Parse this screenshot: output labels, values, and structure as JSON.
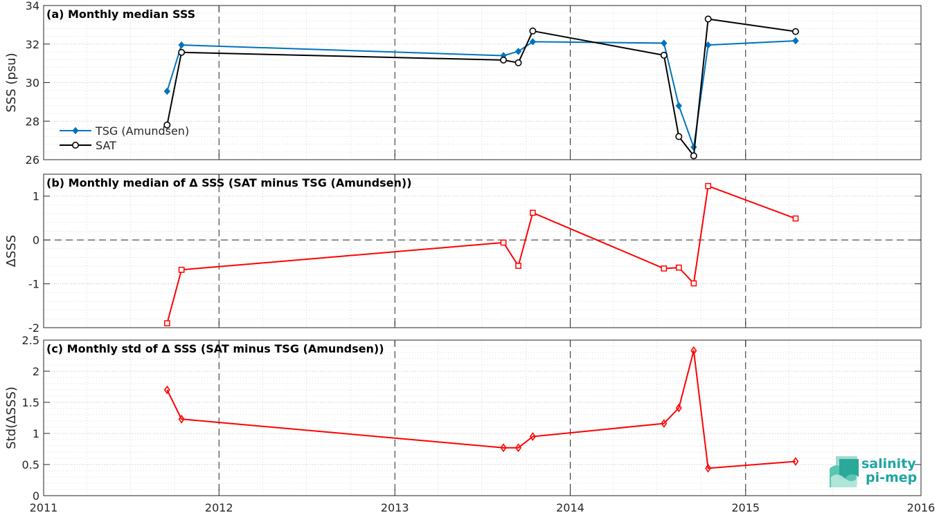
{
  "chart_data": [
    {
      "type": "line",
      "title": "(a) Monthly median SSS",
      "ylabel": "SSS (psu)",
      "xlim": [
        "2011-01-01",
        "2016-01-01"
      ],
      "ylim": [
        26,
        34
      ],
      "yticks": [
        26,
        28,
        30,
        32,
        34
      ],
      "xticks": [
        "2011",
        "2012",
        "2013",
        "2014",
        "2015",
        "2016"
      ],
      "grid": true,
      "legend": "bottom-left",
      "series": [
        {
          "name": "TSG (Amundsen)",
          "color": "#0072BD",
          "marker": "diamond-filled",
          "x": [
            "2011-09-15",
            "2011-10-15",
            "2013-08-15",
            "2013-09-15",
            "2013-10-15",
            "2014-07-15",
            "2014-08-15",
            "2014-09-15",
            "2014-10-15",
            "2015-04-15"
          ],
          "y": [
            29.55,
            31.95,
            31.4,
            31.62,
            32.12,
            32.05,
            28.8,
            26.65,
            31.95,
            32.17
          ]
        },
        {
          "name": "SAT",
          "color": "#000000",
          "marker": "circle-open",
          "x": [
            "2011-09-15",
            "2011-10-15",
            "2013-08-15",
            "2013-09-15",
            "2013-10-15",
            "2014-07-15",
            "2014-08-15",
            "2014-09-15",
            "2014-10-15",
            "2015-04-15"
          ],
          "y": [
            27.8,
            31.57,
            31.17,
            31.03,
            32.68,
            31.42,
            27.2,
            26.2,
            33.3,
            32.65
          ]
        }
      ]
    },
    {
      "type": "line",
      "title": "(b) Monthly median of Δ SSS (SAT minus TSG (Amundsen))",
      "ylabel": "ΔSSS",
      "xlim": [
        "2011-01-01",
        "2016-01-01"
      ],
      "ylim": [
        -2,
        1.5
      ],
      "yticks": [
        -2,
        -1,
        0,
        1
      ],
      "xticks": [
        "2011",
        "2012",
        "2013",
        "2014",
        "2015",
        "2016"
      ],
      "grid": true,
      "zero_line": true,
      "series": [
        {
          "color": "#FF0000",
          "marker": "square-open",
          "x": [
            "2011-09-15",
            "2011-10-15",
            "2013-08-15",
            "2013-09-15",
            "2013-10-15",
            "2014-07-15",
            "2014-08-15",
            "2014-09-15",
            "2014-10-15",
            "2015-04-15"
          ],
          "y": [
            -1.9,
            -0.68,
            -0.06,
            -0.59,
            0.62,
            -0.65,
            -0.63,
            -0.99,
            1.23,
            0.49
          ]
        }
      ]
    },
    {
      "type": "line",
      "title": "(c) Monthly std of Δ SSS (SAT minus TSG (Amundsen))",
      "ylabel": "Std(ΔSSS)",
      "xlim": [
        "2011-01-01",
        "2016-01-01"
      ],
      "ylim": [
        0,
        2.5
      ],
      "yticks": [
        0,
        0.5,
        1,
        1.5,
        2,
        2.5
      ],
      "xticks": [
        "2011",
        "2012",
        "2013",
        "2014",
        "2015",
        "2016"
      ],
      "grid": true,
      "series": [
        {
          "color": "#FF0000",
          "marker": "diamond-open",
          "x": [
            "2011-09-15",
            "2011-10-15",
            "2013-08-15",
            "2013-09-15",
            "2013-10-15",
            "2014-07-15",
            "2014-08-15",
            "2014-09-15",
            "2014-10-15",
            "2015-04-15"
          ],
          "y": [
            1.7,
            1.23,
            0.77,
            0.77,
            0.95,
            1.16,
            1.41,
            2.33,
            0.44,
            0.55
          ]
        }
      ]
    }
  ],
  "logo": {
    "line1": "salinity",
    "line2": "pi-mep",
    "color": "#1ea5a0"
  }
}
